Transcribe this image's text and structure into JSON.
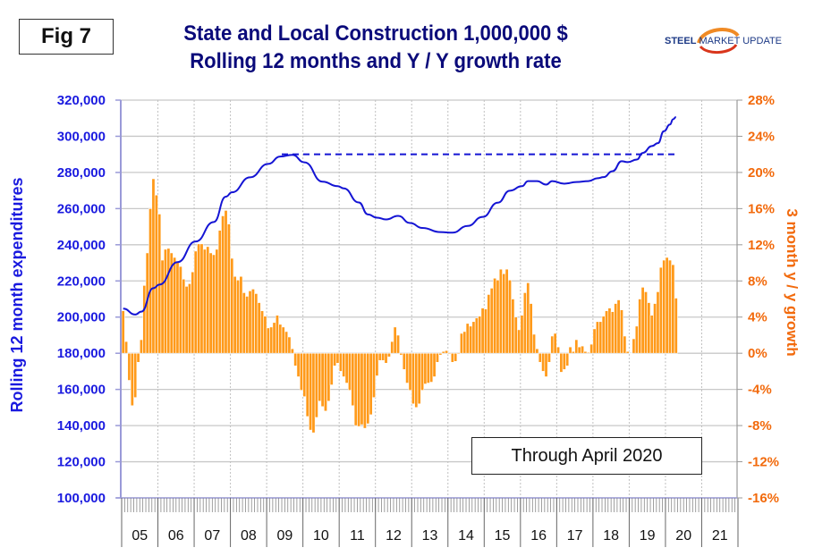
{
  "figure_label": "Fig 7",
  "title_line1": "State and Local Construction 1,000,000 $",
  "title_line2": "Rolling 12 months and Y / Y growth rate",
  "logo": {
    "part1": "STEEL",
    "part2": "MARKET",
    "part3": "UPDATE"
  },
  "annotation": "Through April 2020",
  "colors": {
    "line": "#1414d4",
    "bars": "#ff9a1a",
    "bar_edge": "#ffffff",
    "left_axis_text": "#1a1adf",
    "right_axis_text": "#f26a0c",
    "title": "#0a0a7a"
  },
  "chart_data": {
    "type": "bar+line",
    "title": "State and Local Construction 1,000,000 $ — Rolling 12 months and Y / Y growth rate",
    "xlabel": "",
    "ylabel_left": "Rolling 12 month expenditures",
    "ylabel_right": "3 month y / y growth",
    "ylim_left": [
      100000,
      320000
    ],
    "ylim_right": [
      -16,
      28
    ],
    "yticks_left": [
      "320,000",
      "300,000",
      "280,000",
      "260,000",
      "240,000",
      "220,000",
      "200,000",
      "180,000",
      "160,000",
      "140,000",
      "120,000",
      "100,000"
    ],
    "yticks_right": [
      "28%",
      "24%",
      "20%",
      "16%",
      "12%",
      "8%",
      "4%",
      "0%",
      "-4%",
      "-8%",
      "-12%",
      "-16%"
    ],
    "x_categories": [
      "05",
      "06",
      "07",
      "08",
      "09",
      "10",
      "11",
      "12",
      "13",
      "14",
      "15",
      "16",
      "17",
      "18",
      "19",
      "20",
      "21"
    ],
    "x_start": "2005-01",
    "grid": true,
    "bars": {
      "name": "3 month y/y growth (%)",
      "axis": "right",
      "start": "2005-01",
      "values": [
        4.7,
        1.3,
        -3.0,
        -5.8,
        -4.9,
        -1.0,
        1.5,
        7.5,
        11.1,
        16.0,
        19.3,
        17.5,
        15.4,
        10.3,
        11.5,
        11.6,
        11.1,
        10.6,
        10.1,
        9.6,
        8.2,
        7.4,
        7.7,
        9.0,
        11.3,
        12.1,
        12.1,
        11.5,
        11.8,
        11.1,
        10.9,
        11.5,
        13.6,
        15.2,
        15.8,
        14.3,
        10.5,
        8.5,
        8.1,
        8.5,
        6.7,
        6.3,
        6.9,
        7.1,
        6.6,
        5.6,
        4.7,
        4.1,
        2.8,
        2.9,
        3.4,
        4.2,
        3.2,
        2.9,
        2.4,
        1.8,
        0.5,
        -1.4,
        -2.6,
        -4.1,
        -4.8,
        -7.0,
        -8.5,
        -8.8,
        -7.1,
        -5.3,
        -5.9,
        -6.4,
        -5.3,
        -3.5,
        -1.4,
        -1.1,
        -2.0,
        -2.6,
        -3.3,
        -4.1,
        -5.8,
        -8.0,
        -8.1,
        -7.9,
        -8.3,
        -7.8,
        -6.8,
        -4.9,
        -2.5,
        -0.8,
        -0.8,
        -1.1,
        -0.4,
        1.3,
        2.9,
        2.0,
        -0.2,
        -1.8,
        -3.3,
        -4.1,
        -5.6,
        -6.0,
        -5.6,
        -4.1,
        -3.4,
        -3.3,
        -3.2,
        -2.6,
        -1.0,
        -0.2,
        0.2,
        0.3,
        -0.1,
        -1.0,
        -0.9,
        -0.1,
        2.2,
        2.4,
        3.3,
        3.0,
        3.5,
        3.9,
        4.1,
        5.0,
        4.9,
        6.5,
        7.2,
        8.3,
        8.1,
        9.3,
        8.8,
        9.3,
        8.1,
        6.0,
        4.0,
        2.6,
        4.2,
        6.7,
        7.8,
        5.5,
        2.1,
        0.5,
        -1.0,
        -2.0,
        -2.6,
        -1.0,
        1.9,
        2.2,
        0.7,
        -2.1,
        -1.8,
        -1.4,
        0.7,
        0.2,
        1.5,
        0.7,
        0.8,
        0.2,
        0.1,
        1.0,
        2.7,
        3.5,
        3.5,
        4.1,
        4.7,
        5.0,
        4.6,
        5.5,
        5.9,
        4.8,
        1.9,
        0.2,
        0.0,
        1.6,
        3.0,
        6.0,
        7.3,
        6.8,
        5.6,
        4.2,
        5.5,
        6.8,
        9.5,
        10.3,
        10.6,
        10.3,
        9.8,
        6.1
      ]
    },
    "line": {
      "name": "Rolling 12 month expenditures ($M)",
      "axis": "left",
      "points": [
        [
          "2005-01",
          204700
        ],
        [
          "2005-05",
          201400
        ],
        [
          "2005-07",
          203000
        ],
        [
          "2005-11",
          216000
        ],
        [
          "2006-01",
          218000
        ],
        [
          "2006-07",
          230400
        ],
        [
          "2007-01",
          241800
        ],
        [
          "2007-07",
          252600
        ],
        [
          "2007-11",
          266600
        ],
        [
          "2008-01",
          269000
        ],
        [
          "2008-07",
          277300
        ],
        [
          "2009-01",
          284700
        ],
        [
          "2009-05",
          288800
        ],
        [
          "2009-09",
          289700
        ],
        [
          "2010-01",
          285600
        ],
        [
          "2010-07",
          274900
        ],
        [
          "2010-12",
          272400
        ],
        [
          "2011-02",
          271200
        ],
        [
          "2011-07",
          263400
        ],
        [
          "2011-10",
          256800
        ],
        [
          "2012-01",
          255000
        ],
        [
          "2012-04",
          254000
        ],
        [
          "2012-08",
          256000
        ],
        [
          "2012-12",
          252000
        ],
        [
          "2013-04",
          249300
        ],
        [
          "2013-10",
          247000
        ],
        [
          "2014-02",
          246700
        ],
        [
          "2014-07",
          250400
        ],
        [
          "2014-12",
          255400
        ],
        [
          "2015-05",
          263300
        ],
        [
          "2015-09",
          269900
        ],
        [
          "2016-01",
          272400
        ],
        [
          "2016-03",
          275200
        ],
        [
          "2016-06",
          275200
        ],
        [
          "2016-09",
          273300
        ],
        [
          "2016-11",
          275200
        ],
        [
          "2017-03",
          273800
        ],
        [
          "2017-07",
          274700
        ],
        [
          "2017-11",
          275200
        ],
        [
          "2018-02",
          276800
        ],
        [
          "2018-04",
          277400
        ],
        [
          "2018-07",
          280700
        ],
        [
          "2018-10",
          286200
        ],
        [
          "2018-12",
          285700
        ],
        [
          "2019-03",
          287100
        ],
        [
          "2019-05",
          290800
        ],
        [
          "2019-08",
          294600
        ],
        [
          "2019-10",
          296200
        ],
        [
          "2019-12",
          302800
        ],
        [
          "2020-02",
          306500
        ],
        [
          "2020-03",
          309400
        ],
        [
          "2020-04",
          310600
        ]
      ]
    },
    "reference_line": {
      "name": "prior peak",
      "value": 290000,
      "axis": "left",
      "from": "2009-06",
      "to": "2020-03",
      "style": "dashed"
    },
    "annotations": [
      "Through April 2020"
    ]
  }
}
